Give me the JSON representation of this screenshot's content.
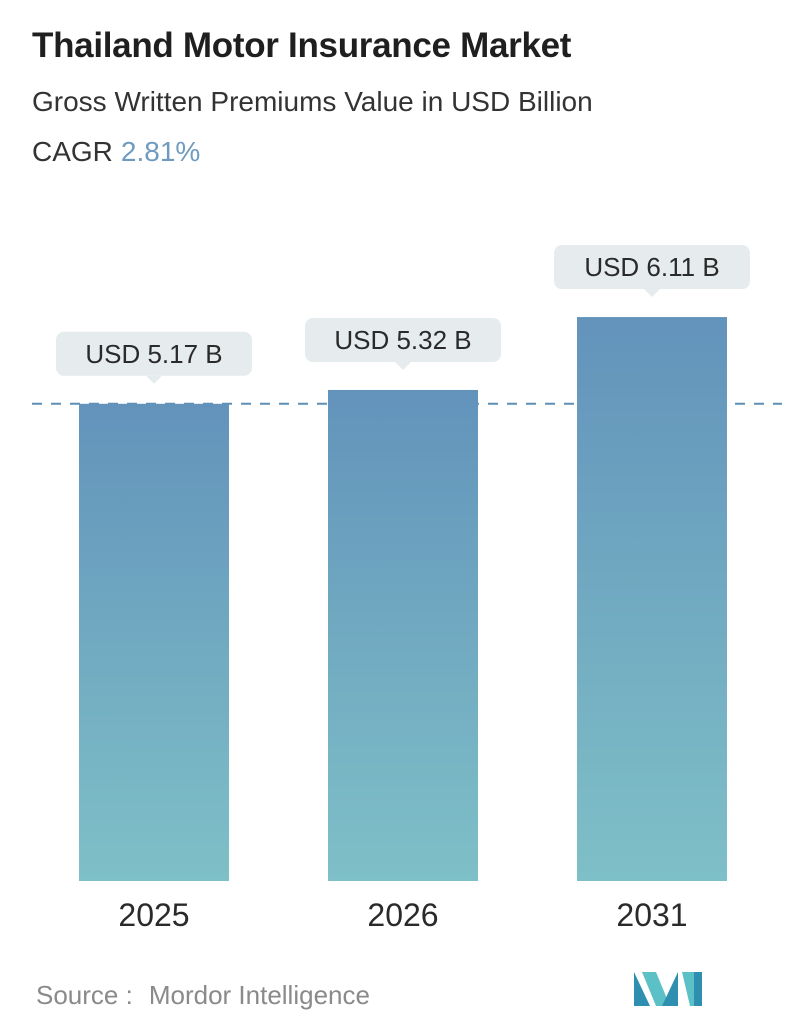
{
  "header": {
    "title": "Thailand Motor Insurance Market",
    "subtitle": "Gross Written Premiums Value in USD Billion",
    "cagr_label": "CAGR",
    "cagr_value": "2.81%"
  },
  "colors": {
    "cagr_value": "#6f9bc0",
    "bar_top": "#6393bb",
    "bar_bottom": "#7ec0c7",
    "label_bg": "#e6ecee",
    "dashed_line": "#5c8fb6",
    "logo_dark": "#2e8fb1",
    "logo_light": "#5cc1c7"
  },
  "chart_data": {
    "type": "bar",
    "categories": [
      "2025",
      "2026",
      "2031"
    ],
    "values": [
      5.17,
      5.32,
      6.11
    ],
    "data_labels": [
      "USD 5.17 B",
      "USD 5.32 B",
      "USD 6.11 B"
    ],
    "reference_line_value": 5.17,
    "reference_line_style": "dashed",
    "grid": false,
    "legend": "none"
  },
  "footer": {
    "source_label": "Source :",
    "source_value": "Mordor Intelligence",
    "logo": "mordor-intelligence-logo"
  }
}
